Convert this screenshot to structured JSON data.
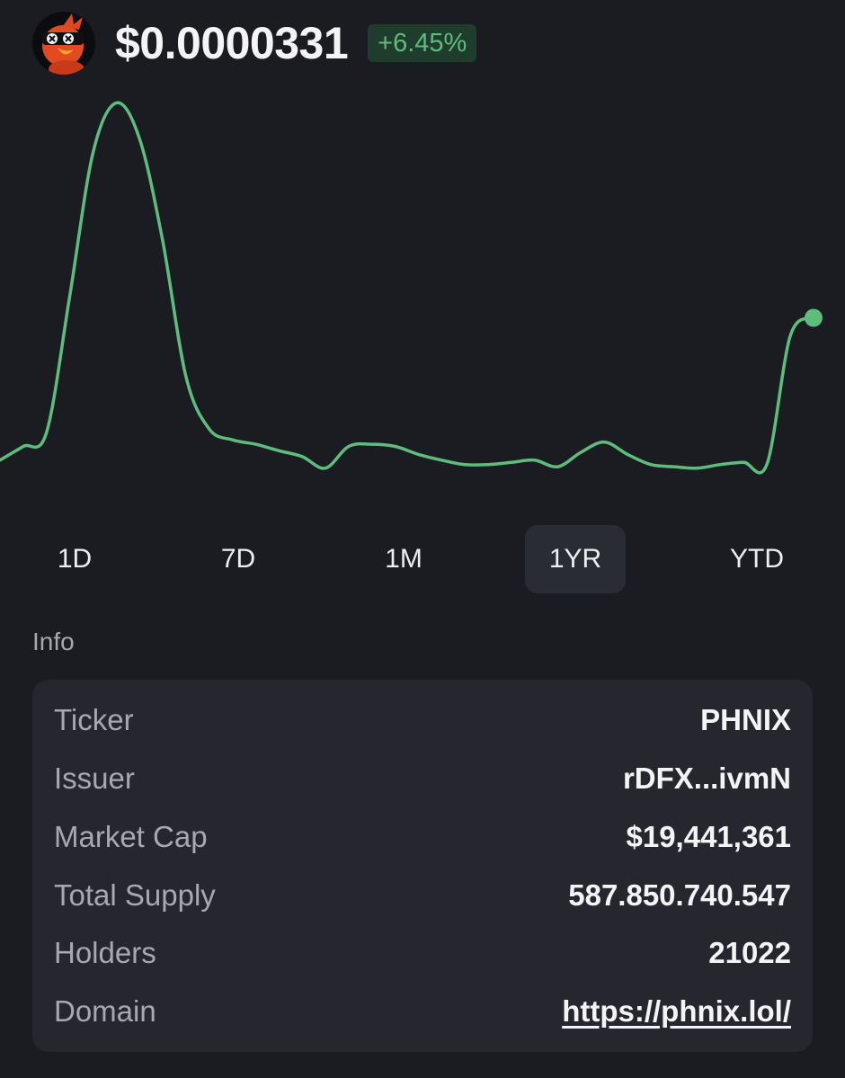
{
  "token": {
    "avatar_icon": "phoenix-bird-avatar-icon",
    "price": "$0.0000331",
    "change": "+6.45%"
  },
  "colors": {
    "background": "#1b1c22",
    "card": "#25262e",
    "accent_green": "#5ebd7c",
    "badge_bg": "#1f3d2c",
    "active_tab": "#2a2c34"
  },
  "chart_data": {
    "type": "line",
    "period": "1YR",
    "grid": false,
    "series": [
      {
        "values": [
          1.35e-05,
          1.54e-05,
          1.73e-05,
          3.61e-05,
          5.58e-05,
          6.27e-05,
          5.78e-05,
          4.37e-05,
          2.5e-05,
          1.78e-05,
          1.63e-05,
          1.57e-05,
          1.48e-05,
          1.4e-05,
          1.24e-05,
          1.54e-05,
          1.57e-05,
          1.54e-05,
          1.43e-05,
          1.35e-05,
          1.29e-05,
          1.29e-05,
          1.32e-05,
          1.35e-05,
          1.26e-05,
          1.46e-05,
          1.6e-05,
          1.43e-05,
          1.29e-05,
          1.26e-05,
          1.24e-05,
          1.29e-05,
          1.32e-05,
          1.3e-05,
          3.06e-05,
          3.31e-05
        ]
      }
    ]
  },
  "tabs": [
    {
      "label": "1D",
      "active": false
    },
    {
      "label": "7D",
      "active": false
    },
    {
      "label": "1M",
      "active": false
    },
    {
      "label": "1YR",
      "active": true
    },
    {
      "label": "YTD",
      "active": false
    }
  ],
  "info": {
    "title": "Info",
    "rows": [
      {
        "key": "Ticker",
        "value": "PHNIX",
        "is_link": false
      },
      {
        "key": "Issuer",
        "value": "rDFX...ivmN",
        "is_link": false
      },
      {
        "key": "Market Cap",
        "value": "$19,441,361",
        "is_link": false
      },
      {
        "key": "Total Supply",
        "value": "587.850.740.547",
        "is_link": false
      },
      {
        "key": "Holders",
        "value": "21022",
        "is_link": false
      },
      {
        "key": "Domain",
        "value": "https://phnix.lol/",
        "is_link": true
      }
    ]
  }
}
